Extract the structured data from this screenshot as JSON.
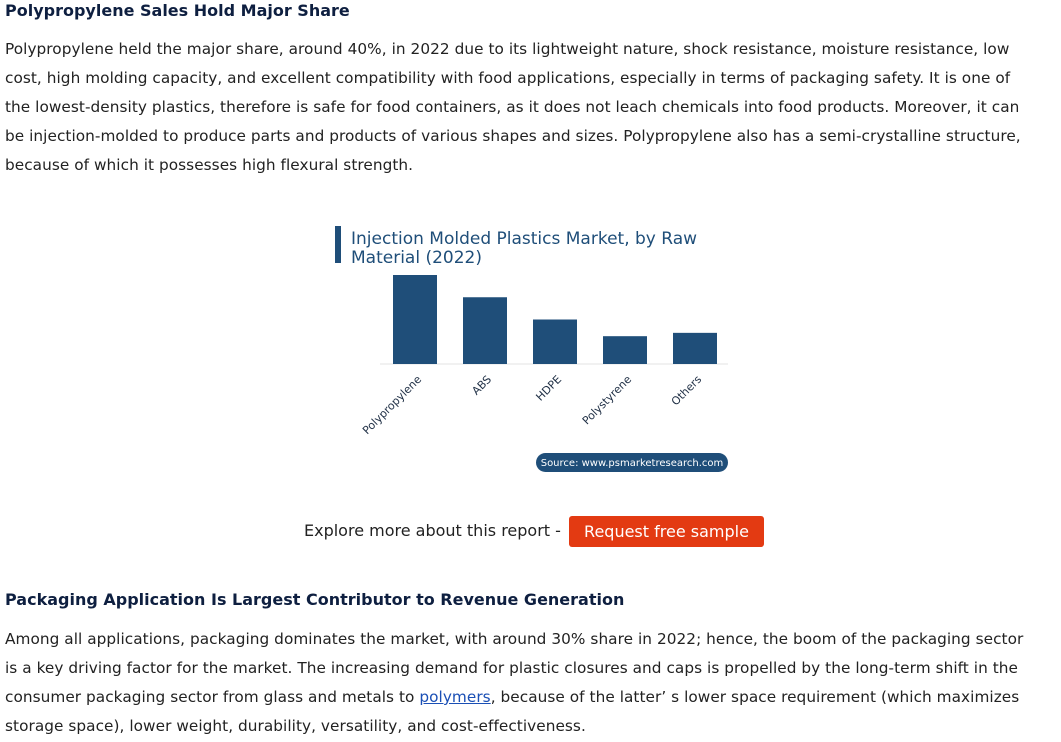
{
  "section1": {
    "heading": "Polypropylene Sales Hold Major Share",
    "paragraph_lines": [
      "Polypropylene held the major share, around 40%, in 2022 due to its lightweight nature, shock resistance, moisture resistance, low",
      "cost, high molding capacity, and excellent compatibility with food applications, especially in terms of packaging safety. It is one of",
      "the lowest-density plastics, therefore is safe for food containers, as it does not leach chemicals into food products. Moreover, it can",
      "be injection-molded to produce parts and products of various shapes and sizes. Polypropylene also has a semi-crystalline structure,",
      "because of which it possesses high flexural strength."
    ]
  },
  "chart_data": {
    "type": "bar",
    "title_lines": [
      "Injection Molded Plastics Market, by Raw",
      "Material (2022)"
    ],
    "categories": [
      "Polypropylene",
      "ABS",
      "HDPE",
      "Polystyrene",
      "Others"
    ],
    "values": [
      40,
      30,
      20,
      12.5,
      14
    ],
    "ylim": [
      0,
      40
    ],
    "grid": false,
    "bar_color": "#1f4e79",
    "source": "Source: www.psmarketresearch.com",
    "source_bg": "#1f4e79"
  },
  "cta": {
    "text": "Explore more about this report -",
    "button_label": "Request free sample",
    "button_color": "#e33a12"
  },
  "section2": {
    "heading": "Packaging Application Is Largest Contributor to Revenue Generation",
    "line1": "Among all applications, packaging dominates the market, with around 30% share in 2022; hence, the boom of the packaging sector",
    "line2": "is a key driving factor for the market. The increasing demand for plastic closures and caps is propelled by the long-term shift in the",
    "line3_before": "consumer packaging sector from glass and metals to ",
    "line3_link": "polymers",
    "line3_after": ", because of the latter’ s lower space requirement (which maximizes",
    "line4": "storage space), lower weight, durability, versatility, and cost-effectiveness."
  }
}
